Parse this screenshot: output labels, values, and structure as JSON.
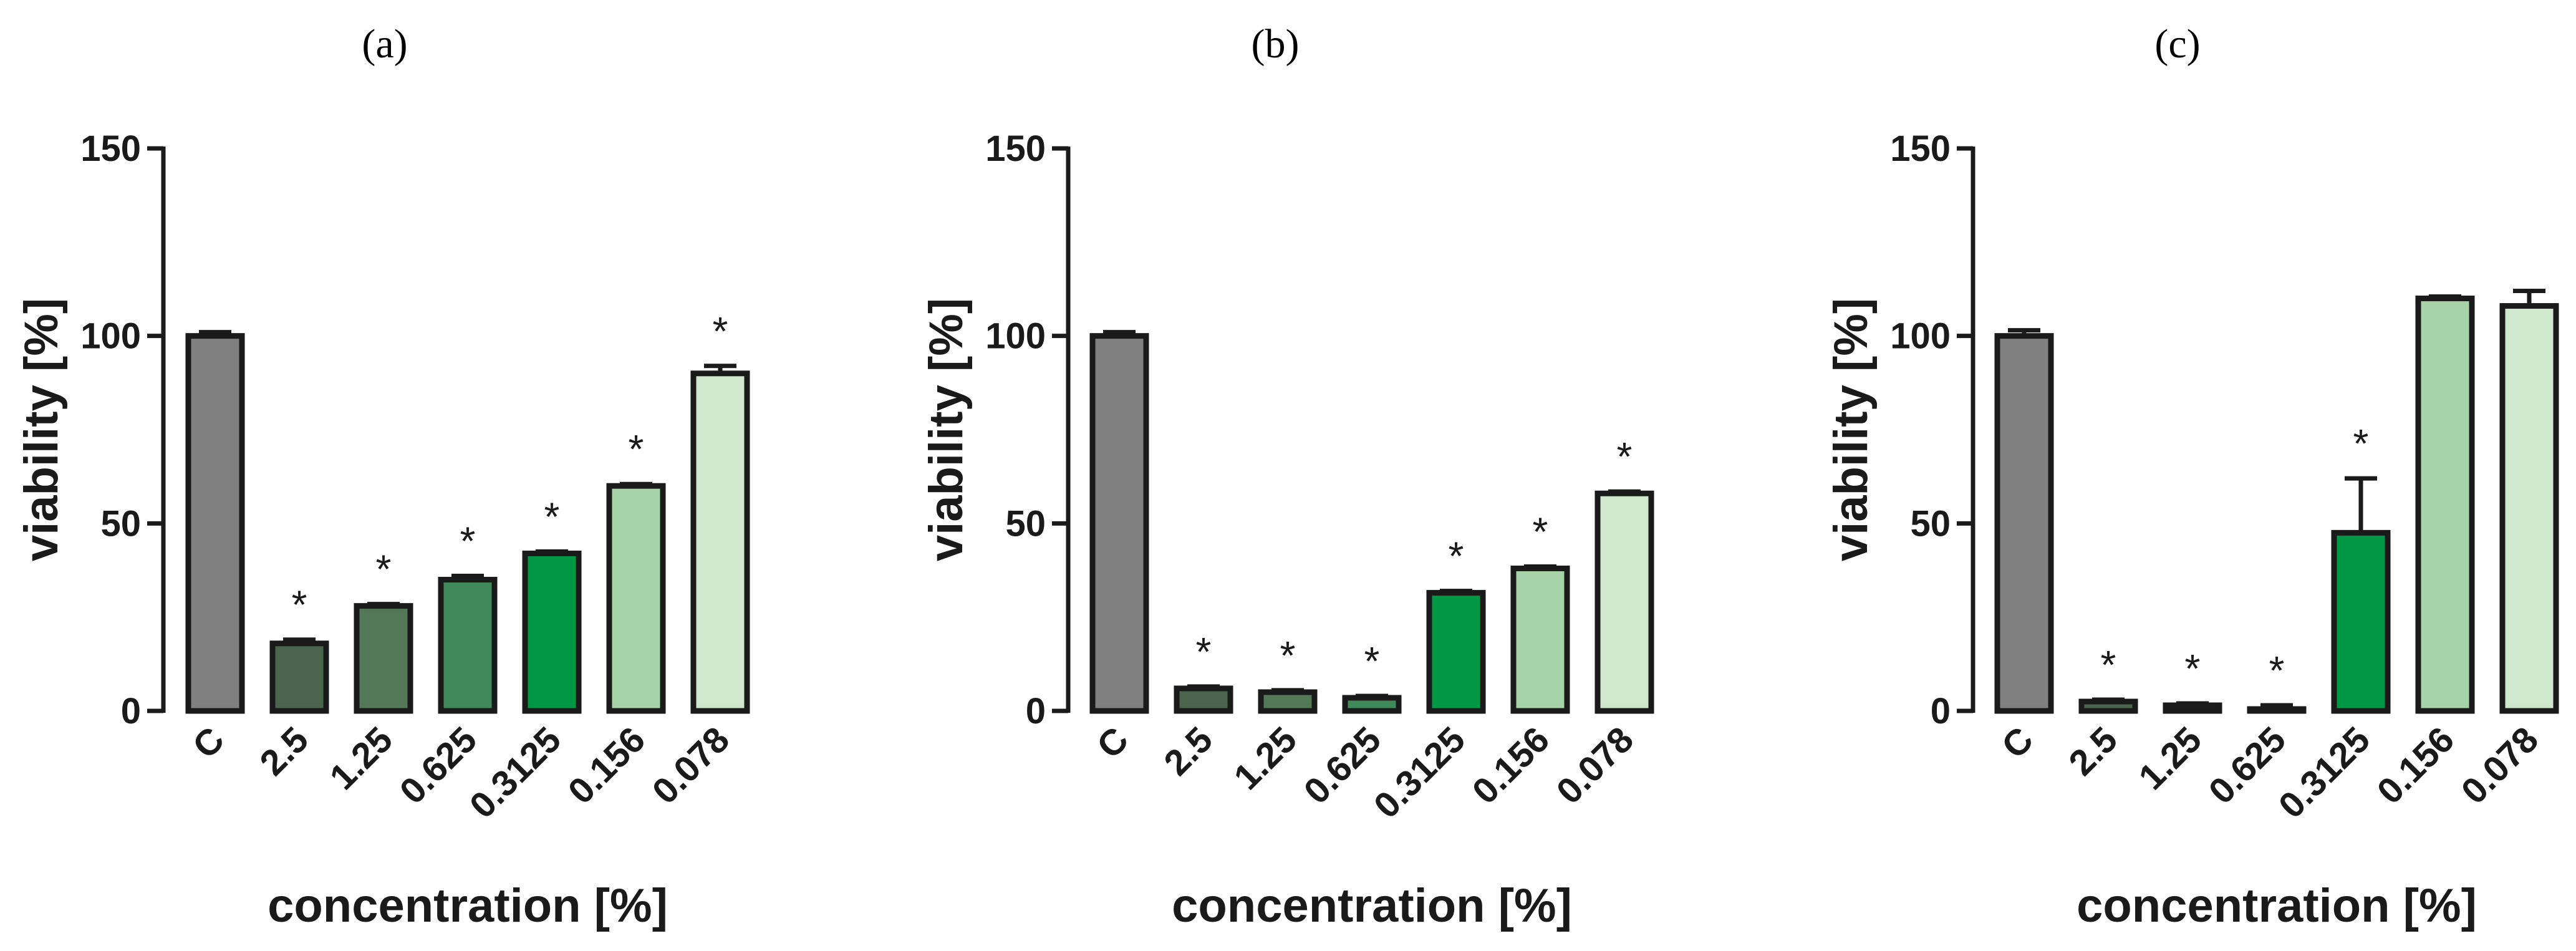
{
  "chart_data": [
    {
      "type": "bar",
      "panel_label": "(a)",
      "categories": [
        "C",
        "2.5",
        "1.25",
        "0.625",
        "0.3125",
        "0.156",
        "0.078"
      ],
      "values": [
        100,
        18,
        28,
        35,
        42,
        60,
        90
      ],
      "errors": [
        1,
        1,
        0.5,
        1,
        0.5,
        0.5,
        2
      ],
      "significance": [
        "",
        "*",
        "*",
        "*",
        "*",
        "*",
        "*"
      ],
      "xlabel": "concentration [%]",
      "ylabel": "viability [%]",
      "ylim": [
        0,
        150
      ],
      "yticks": [
        "0",
        "50",
        "100",
        "150"
      ],
      "colors": [
        "#808080",
        "#4a654c",
        "#527857",
        "#3f8a58",
        "#009844",
        "#a6d4a8",
        "#cfe8cd"
      ]
    },
    {
      "type": "bar",
      "panel_label": "(b)",
      "categories": [
        "C",
        "2.5",
        "1.25",
        "0.625",
        "0.3125",
        "0.156",
        "0.078"
      ],
      "values": [
        100,
        6,
        5,
        3.5,
        31.5,
        38,
        58
      ],
      "errors": [
        1,
        0.5,
        0.5,
        0.5,
        0.5,
        0.5,
        0.5
      ],
      "significance": [
        "",
        "*",
        "*",
        "*",
        "*",
        "*",
        "*"
      ],
      "xlabel": "concentration [%]",
      "ylabel": "viability [%]",
      "ylim": [
        0,
        150
      ],
      "yticks": [
        "0",
        "50",
        "100",
        "150"
      ],
      "colors": [
        "#808080",
        "#4a654c",
        "#527857",
        "#3f8a58",
        "#009844",
        "#a6d4a8",
        "#cfe8cd"
      ]
    },
    {
      "type": "bar",
      "panel_label": "(c)",
      "categories": [
        "C",
        "2.5",
        "1.25",
        "0.625",
        "0.3125",
        "0.156",
        "0.078"
      ],
      "values": [
        100,
        2.5,
        1.5,
        0.5,
        47.5,
        110,
        108
      ],
      "errors": [
        1.5,
        0.5,
        0.5,
        1,
        14.5,
        0.5,
        4
      ],
      "significance": [
        "",
        "*",
        "*",
        "*",
        "*",
        "",
        ""
      ],
      "xlabel": "concentration [%]",
      "ylabel": "viability [%]",
      "ylim": [
        0,
        150
      ],
      "yticks": [
        "0",
        "50",
        "100",
        "150"
      ],
      "colors": [
        "#808080",
        "#4a654c",
        "#527857",
        "#3f8a58",
        "#009844",
        "#a6d4a8",
        "#cfe8cd"
      ]
    }
  ]
}
